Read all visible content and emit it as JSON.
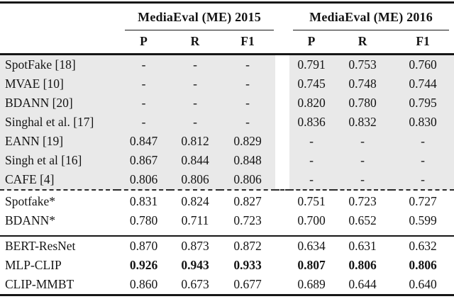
{
  "figure": {
    "type": "results-table",
    "group_headers": [
      "MediaEval (ME) 2015",
      "MediaEval (ME) 2016"
    ],
    "sub_headers": [
      "P",
      "R",
      "F1",
      "P",
      "R",
      "F1"
    ],
    "sections": [
      {
        "name": "prior-work-shaded",
        "shaded": true,
        "divider_after": "dashed",
        "rows": [
          {
            "model": "SpotFake [18]",
            "values": [
              "-",
              "-",
              "-",
              "0.791",
              "0.753",
              "0.760"
            ],
            "bold_values": false
          },
          {
            "model": "MVAE [10]",
            "values": [
              "-",
              "-",
              "-",
              "0.745",
              "0.748",
              "0.744"
            ],
            "bold_values": false
          },
          {
            "model": "BDANN [20]",
            "values": [
              "-",
              "-",
              "-",
              "0.820",
              "0.780",
              "0.795"
            ],
            "bold_values": false
          },
          {
            "model": "Singhal et al. [17]",
            "values": [
              "-",
              "-",
              "-",
              "0.836",
              "0.832",
              "0.830"
            ],
            "bold_values": false
          },
          {
            "model": "EANN [19]",
            "values": [
              "0.847",
              "0.812",
              "0.829",
              "-",
              "-",
              "-"
            ],
            "bold_values": false
          },
          {
            "model": "Singh et al [16]",
            "values": [
              "0.867",
              "0.844",
              "0.848",
              "-",
              "-",
              "-"
            ],
            "bold_values": false
          },
          {
            "model": "CAFE [4]",
            "values": [
              "0.806",
              "0.806",
              "0.806",
              "-",
              "-",
              "-"
            ],
            "bold_values": false
          }
        ]
      },
      {
        "name": "reimplementations",
        "shaded": false,
        "divider_after": "solid",
        "rows": [
          {
            "model": "Spotfake*",
            "values": [
              "0.831",
              "0.824",
              "0.827",
              "0.751",
              "0.723",
              "0.727"
            ],
            "bold_values": false
          },
          {
            "model": "BDANN*",
            "values": [
              "0.780",
              "0.711",
              "0.723",
              "0.700",
              "0.652",
              "0.599"
            ],
            "bold_values": false
          }
        ]
      },
      {
        "name": "proposed-models",
        "shaded": false,
        "divider_after": null,
        "rows": [
          {
            "model": "BERT-ResNet",
            "values": [
              "0.870",
              "0.873",
              "0.872",
              "0.634",
              "0.631",
              "0.632"
            ],
            "bold_values": false
          },
          {
            "model": "MLP-CLIP",
            "values": [
              "0.926",
              "0.943",
              "0.933",
              "0.807",
              "0.806",
              "0.806"
            ],
            "bold_values": true
          },
          {
            "model": "CLIP-MMBT",
            "values": [
              "0.860",
              "0.673",
              "0.677",
              "0.689",
              "0.644",
              "0.640"
            ],
            "bold_values": false
          }
        ]
      }
    ],
    "colors": {
      "shaded_row_bg": "#e9e9e9",
      "rule": "#161616",
      "text": "#141414",
      "background": "#ffffff"
    }
  }
}
